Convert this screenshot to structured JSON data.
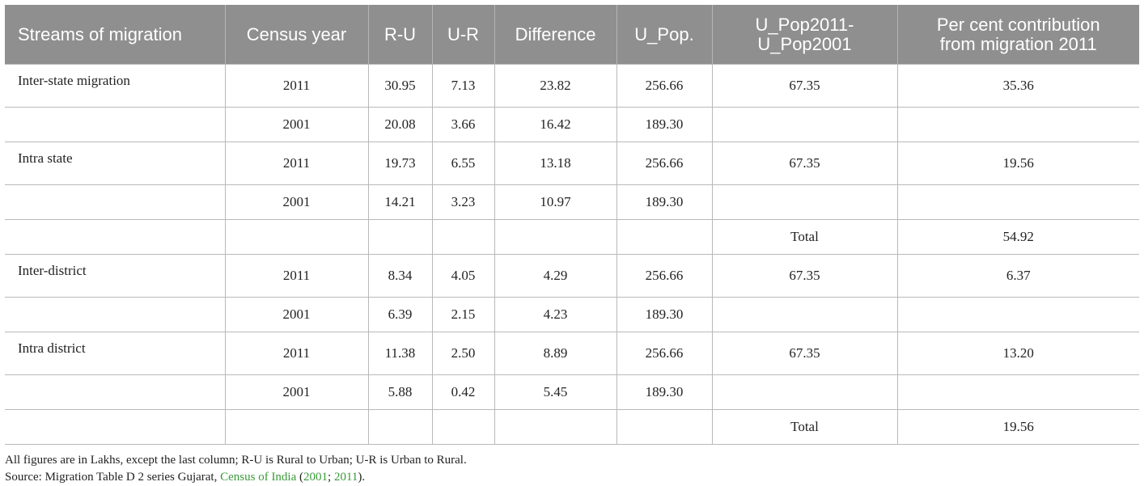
{
  "header": {
    "stream": "Streams of migration",
    "census_year": "Census year",
    "ru": "R-U",
    "ur": "U-R",
    "difference": "Difference",
    "upop": "U_Pop.",
    "upop_diff_line1": "U_Pop2011-",
    "upop_diff_line2": "U_Pop2001",
    "contribution_line1": "Per cent contribution",
    "contribution_line2": "from migration 2011"
  },
  "rows": [
    {
      "stream": "Inter-state migration",
      "year": "2011",
      "ru": "30.95",
      "ur": "7.13",
      "diff": "23.82",
      "upop": "256.66",
      "upop_diff": "67.35",
      "contrib": "35.36"
    },
    {
      "stream": "",
      "year": "2001",
      "ru": "20.08",
      "ur": "3.66",
      "diff": "16.42",
      "upop": "189.30",
      "upop_diff": "",
      "contrib": ""
    },
    {
      "stream": "Intra state",
      "year": "2011",
      "ru": "19.73",
      "ur": "6.55",
      "diff": "13.18",
      "upop": "256.66",
      "upop_diff": "67.35",
      "contrib": "19.56"
    },
    {
      "stream": "",
      "year": "2001",
      "ru": "14.21",
      "ur": "3.23",
      "diff": "10.97",
      "upop": "189.30",
      "upop_diff": "",
      "contrib": ""
    },
    {
      "stream": "",
      "year": "",
      "ru": "",
      "ur": "",
      "diff": "",
      "upop": "",
      "upop_diff": "Total",
      "contrib": "54.92"
    },
    {
      "stream": "Inter-district",
      "year": "2011",
      "ru": "8.34",
      "ur": "4.05",
      "diff": "4.29",
      "upop": "256.66",
      "upop_diff": "67.35",
      "contrib": "6.37"
    },
    {
      "stream": "",
      "year": "2001",
      "ru": "6.39",
      "ur": "2.15",
      "diff": "4.23",
      "upop": "189.30",
      "upop_diff": "",
      "contrib": ""
    },
    {
      "stream": "Intra district",
      "year": "2011",
      "ru": "11.38",
      "ur": "2.50",
      "diff": "8.89",
      "upop": "256.66",
      "upop_diff": "67.35",
      "contrib": "13.20"
    },
    {
      "stream": "",
      "year": "2001",
      "ru": "5.88",
      "ur": "0.42",
      "diff": "5.45",
      "upop": "189.30",
      "upop_diff": "",
      "contrib": ""
    },
    {
      "stream": "",
      "year": "",
      "ru": "",
      "ur": "",
      "diff": "",
      "upop": "",
      "upop_diff": "Total",
      "contrib": "19.56"
    }
  ],
  "notes": {
    "line1": "All figures are in Lakhs, except the last column; R-U is Rural to Urban; U-R is Urban to Rural.",
    "source_prefix": "Source: Migration Table D 2 series Gujarat, ",
    "source_link": "Census of India",
    "source_open": " (",
    "year1": "2001",
    "sep": "; ",
    "year2": "2011",
    "source_close": ")."
  },
  "colors": {
    "header_bg": "#8f8f8f",
    "header_text": "#ffffff",
    "grid": "#b9b9b9",
    "link": "#3a9a3a"
  }
}
